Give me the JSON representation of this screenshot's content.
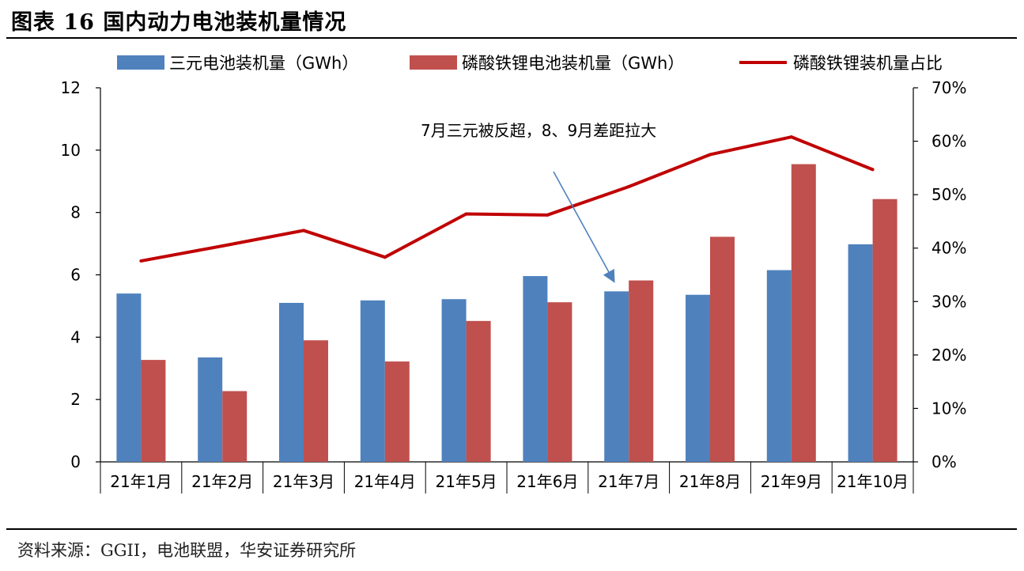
{
  "header": {
    "title": "图表 16 国内动力电池装机量情况"
  },
  "footer": {
    "source": "资料来源：GGII，电池联盟，华安证券研究所"
  },
  "colors": {
    "ncm": "#4F81BD",
    "lfp": "#C0504D",
    "share": "#C00000",
    "axis": "#000000"
  },
  "chart_data": {
    "type": "bar",
    "title": "",
    "categories": [
      "21年1月",
      "21年2月",
      "21年3月",
      "21年4月",
      "21年5月",
      "21年6月",
      "21年7月",
      "21年8月",
      "21年9月",
      "21年10月"
    ],
    "series": [
      {
        "name": "三元电池装机量（GWh）",
        "type": "bar",
        "axis": "left",
        "values": [
          5.4,
          3.35,
          5.1,
          5.18,
          5.22,
          5.96,
          5.47,
          5.36,
          6.15,
          6.98
        ]
      },
      {
        "name": "磷酸铁锂电池装机量（GWh）",
        "type": "bar",
        "axis": "left",
        "values": [
          3.27,
          2.27,
          3.9,
          3.22,
          4.52,
          5.12,
          5.82,
          7.22,
          9.55,
          8.43
        ]
      },
      {
        "name": "磷酸铁锂装机量占比",
        "type": "line",
        "axis": "right",
        "values": [
          37.6,
          40.4,
          43.3,
          38.3,
          46.4,
          46.2,
          51.5,
          57.5,
          60.8,
          54.7
        ]
      }
    ],
    "ylim": [
      0,
      12
    ],
    "yticks": [
      "0",
      "2",
      "4",
      "6",
      "8",
      "10",
      "12"
    ],
    "y2lim": [
      0,
      70
    ],
    "y2ticks": [
      "0%",
      "10%",
      "20%",
      "30%",
      "40%",
      "50%",
      "60%",
      "70%"
    ],
    "annotation": {
      "text": "7月三元被反超，8、9月差距拉大",
      "points_to": "21年7月"
    },
    "legend": "top"
  }
}
